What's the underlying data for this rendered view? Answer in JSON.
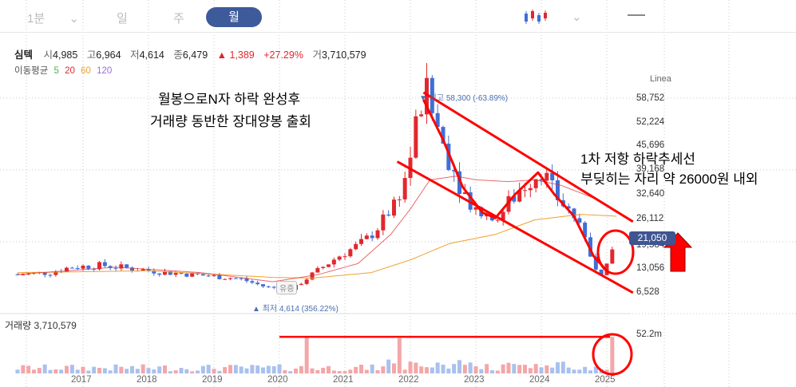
{
  "topbar": {
    "period_minute": "1분",
    "period_day": "일",
    "period_week": "주",
    "period_month": "월"
  },
  "quote": {
    "name": "심텍",
    "open_label": "시",
    "open": "4,985",
    "high_label": "고",
    "high": "6,964",
    "low_label": "저",
    "low": "4,614",
    "close_label": "종",
    "close": "6,479",
    "change": "▲ 1,389",
    "change_pct": "+27.29%",
    "volume_label": "거",
    "volume": "3,710,579"
  },
  "moving_avg": {
    "label": "이동평균",
    "p5": "5",
    "p20": "20",
    "p60": "60",
    "p120": "120",
    "colors": {
      "p5": "#4caf50",
      "p20": "#e0282e",
      "p60": "#f0a030",
      "p120": "#9c6fd6"
    }
  },
  "annotations": {
    "left_line1": "월봉으로N자 하락 완성후",
    "left_line2": "거래량 동반한 장대양봉 출회",
    "right_line1": "1차 저항 하락추세선",
    "right_line2": "부딪히는 자리 약 26000원 내외"
  },
  "markers": {
    "high_label": "▼ 최고 58,300 (-63.89%)",
    "low_label": "▲ 최저 4,614 (356.22%)",
    "yusang_label": "유증"
  },
  "chart_data": {
    "type": "candlestick",
    "price_axis": {
      "scale_label": "Linea",
      "ticks": [
        "58,752",
        "52,224",
        "45,696",
        "39,168",
        "32,640",
        "26,112",
        "19,584",
        "13,056",
        "6,528"
      ],
      "tick_values": [
        58752,
        52224,
        45696,
        39168,
        32640,
        26112,
        19584,
        13056,
        6528
      ],
      "range": [
        0,
        65280
      ]
    },
    "current_price": {
      "label": "21,050",
      "value": 21050
    },
    "x_axis": {
      "ticks": [
        "2017",
        "2018",
        "2019",
        "2020",
        "2021",
        "2022",
        "2023",
        "2024",
        "2025"
      ],
      "tick_years": [
        2017,
        2018,
        2019,
        2020,
        2021,
        2022,
        2023,
        2024,
        2025
      ],
      "range": [
        2016,
        2025.4
      ]
    },
    "volume": {
      "label": "거래량",
      "value": "3,710,579",
      "axis_tick": "52.2m",
      "axis_value": 52.2
    },
    "price_path_keypoints": [
      [
        2016.0,
        9000
      ],
      [
        2016.5,
        9500
      ],
      [
        2016.8,
        11000
      ],
      [
        2017.3,
        11500
      ],
      [
        2017.8,
        10500
      ],
      [
        2018.3,
        9500
      ],
      [
        2018.8,
        8800
      ],
      [
        2019.4,
        7800
      ],
      [
        2019.8,
        5500
      ],
      [
        2020.2,
        5000
      ],
      [
        2020.5,
        9000
      ],
      [
        2020.9,
        14000
      ],
      [
        2021.3,
        18000
      ],
      [
        2021.6,
        24000
      ],
      [
        2021.9,
        34000
      ],
      [
        2022.0,
        42000
      ],
      [
        2022.15,
        55000
      ],
      [
        2022.25,
        58000
      ],
      [
        2022.5,
        45000
      ],
      [
        2022.8,
        32000
      ],
      [
        2023.0,
        27000
      ],
      [
        2023.3,
        24000
      ],
      [
        2023.7,
        33000
      ],
      [
        2024.0,
        38000
      ],
      [
        2024.2,
        31000
      ],
      [
        2024.5,
        25000
      ],
      [
        2024.8,
        12000
      ],
      [
        2024.95,
        9000
      ],
      [
        2025.05,
        13000
      ],
      [
        2025.15,
        21050
      ]
    ],
    "ma20_keypoints": [
      [
        2016.0,
        9000
      ],
      [
        2017.5,
        11000
      ],
      [
        2018.8,
        9500
      ],
      [
        2019.9,
        7000
      ],
      [
        2020.6,
        9000
      ],
      [
        2021.2,
        12000
      ],
      [
        2021.7,
        20000
      ],
      [
        2022.0,
        27000
      ],
      [
        2022.3,
        35000
      ],
      [
        2022.7,
        36000
      ],
      [
        2023.0,
        35000
      ],
      [
        2023.5,
        34500
      ],
      [
        2023.9,
        35000
      ],
      [
        2024.3,
        33500
      ],
      [
        2024.8,
        30000
      ],
      [
        2025.15,
        26000
      ]
    ],
    "ma60_keypoints": [
      [
        2016.0,
        9500
      ],
      [
        2018.0,
        10000
      ],
      [
        2019.9,
        8200
      ],
      [
        2020.5,
        8000
      ],
      [
        2021.4,
        9500
      ],
      [
        2022.0,
        13000
      ],
      [
        2022.6,
        17500
      ],
      [
        2023.3,
        20000
      ],
      [
        2023.9,
        24000
      ],
      [
        2024.6,
        25500
      ],
      [
        2025.15,
        25000
      ]
    ],
    "volume_spikes": [
      {
        "x": 2020.45,
        "v": 52
      },
      {
        "x": 2021.85,
        "v": 50
      },
      {
        "x": 2025.1,
        "v": 52
      }
    ],
    "drawings": {
      "channel_upper": [
        [
          2022.2,
          59000
        ],
        [
          2025.4,
          23500
        ]
      ],
      "channel_lower": [
        [
          2021.8,
          40000
        ],
        [
          2025.4,
          4000
        ]
      ],
      "volume_level_value": 52
    }
  }
}
